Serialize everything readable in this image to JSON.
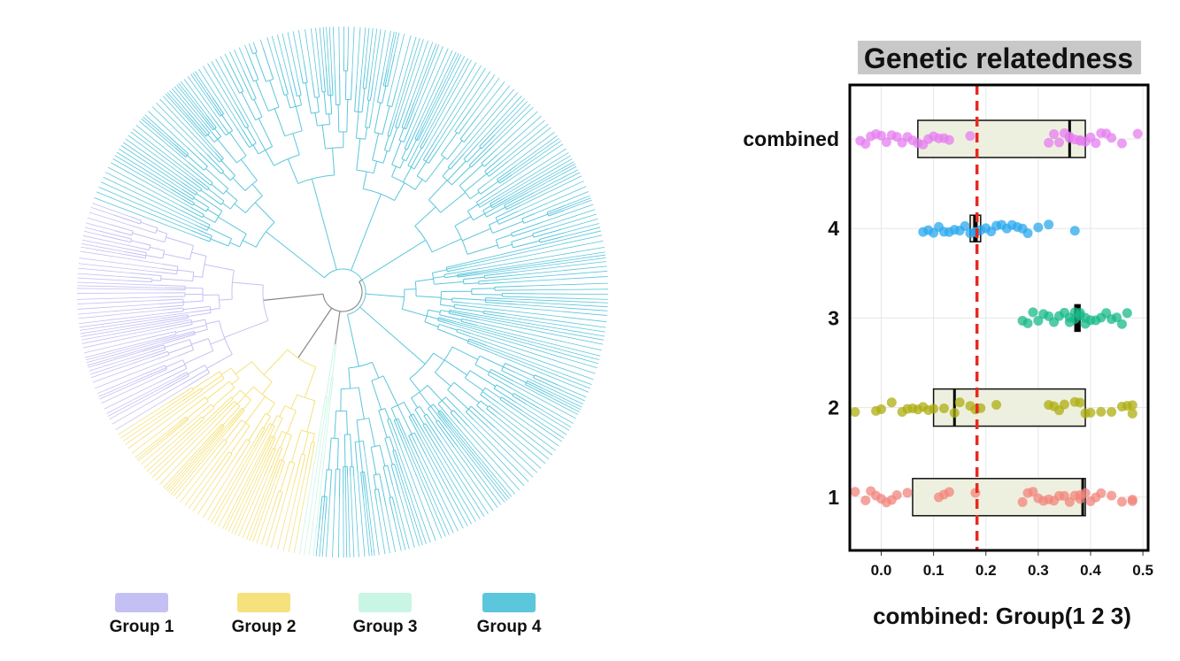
{
  "tree": {
    "groups": [
      {
        "label": "Group 1",
        "color": "#c5c0f3"
      },
      {
        "label": "Group 2",
        "color": "#f6e27c"
      },
      {
        "label": "Group 3",
        "color": "#c9f6e4"
      },
      {
        "label": "Group 4",
        "color": "#5bc6dc"
      }
    ],
    "sectors_deg": [
      {
        "group": "Group 4",
        "from": -160,
        "to": 96
      },
      {
        "group": "Group 3",
        "from": 96,
        "to": 100
      },
      {
        "group": "Group 2",
        "from": 100,
        "to": 148
      },
      {
        "group": "Group 1",
        "from": 148,
        "to": 200
      }
    ],
    "branch_gray": "#888888"
  },
  "chart_data": {
    "type": "boxplot-strip",
    "title": "Genetic relatedness",
    "xlabel": "combined: Group(1 2 3)",
    "ylabel": "",
    "xlim": [
      -0.06,
      0.51
    ],
    "xticks": [
      "0.0",
      "0.1",
      "0.2",
      "0.3",
      "0.4",
      "0.5"
    ],
    "categories": [
      "combined",
      "4",
      "3",
      "2",
      "1"
    ],
    "reference_line": {
      "x": 0.183,
      "color": "#e8281f",
      "style": "dashed"
    },
    "grid": true,
    "box_fill": "#eef0df",
    "series": [
      {
        "category": "combined",
        "color": "#e67ef0",
        "box": {
          "q1": 0.07,
          "median": 0.36,
          "q3": 0.39
        },
        "points": [
          -0.04,
          -0.03,
          -0.02,
          -0.01,
          0.0,
          0.01,
          0.02,
          0.03,
          0.04,
          0.05,
          0.06,
          0.07,
          0.08,
          0.09,
          0.1,
          0.11,
          0.12,
          0.13,
          0.17,
          0.32,
          0.33,
          0.34,
          0.35,
          0.36,
          0.36,
          0.37,
          0.38,
          0.38,
          0.39,
          0.4,
          0.41,
          0.42,
          0.43,
          0.44,
          0.46,
          0.49
        ]
      },
      {
        "category": "4",
        "color": "#29a8ee",
        "box": {
          "q1": 0.17,
          "median": 0.18,
          "q3": 0.19
        },
        "points": [
          0.08,
          0.09,
          0.1,
          0.11,
          0.12,
          0.13,
          0.14,
          0.15,
          0.16,
          0.17,
          0.18,
          0.18,
          0.19,
          0.2,
          0.21,
          0.22,
          0.23,
          0.24,
          0.25,
          0.26,
          0.27,
          0.28,
          0.3,
          0.32,
          0.37
        ]
      },
      {
        "category": "3",
        "color": "#18b98a",
        "box": {
          "q1": 0.37,
          "median": 0.375,
          "q3": 0.38
        },
        "points": [
          0.27,
          0.28,
          0.29,
          0.3,
          0.31,
          0.32,
          0.33,
          0.34,
          0.35,
          0.36,
          0.36,
          0.37,
          0.37,
          0.38,
          0.38,
          0.39,
          0.39,
          0.4,
          0.41,
          0.42,
          0.43,
          0.44,
          0.45,
          0.46,
          0.47
        ]
      },
      {
        "category": "2",
        "color": "#aeae10",
        "box": {
          "q1": 0.1,
          "median": 0.14,
          "q3": 0.39
        },
        "points": [
          -0.05,
          -0.01,
          0.0,
          0.02,
          0.04,
          0.05,
          0.06,
          0.07,
          0.08,
          0.09,
          0.1,
          0.12,
          0.14,
          0.15,
          0.17,
          0.18,
          0.19,
          0.22,
          0.32,
          0.33,
          0.34,
          0.35,
          0.37,
          0.38,
          0.39,
          0.4,
          0.42,
          0.44,
          0.46,
          0.47,
          0.48,
          0.48
        ]
      },
      {
        "category": "1",
        "color": "#f2857c",
        "box": {
          "q1": 0.06,
          "median": 0.385,
          "q3": 0.39
        },
        "points": [
          -0.05,
          -0.03,
          -0.02,
          -0.01,
          0.0,
          0.01,
          0.02,
          0.03,
          0.05,
          0.11,
          0.12,
          0.13,
          0.18,
          0.27,
          0.28,
          0.29,
          0.3,
          0.31,
          0.32,
          0.33,
          0.34,
          0.35,
          0.36,
          0.37,
          0.38,
          0.38,
          0.39,
          0.4,
          0.41,
          0.42,
          0.44,
          0.46,
          0.48,
          0.48
        ]
      }
    ]
  }
}
